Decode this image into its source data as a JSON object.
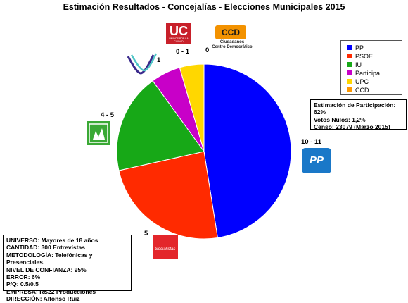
{
  "chart_data": {
    "type": "pie",
    "title": "Estimación Resultados - Concejalías - Elecciones Municipales 2015",
    "start_angle_deg": 90,
    "direction": "clockwise",
    "slices": [
      {
        "label": "PP",
        "value": 47.5,
        "color": "#0000ff",
        "seats": "10 - 11"
      },
      {
        "label": "PSOE",
        "value": 24.0,
        "color": "#ff2a00",
        "seats": "5"
      },
      {
        "label": "IU",
        "value": 18.5,
        "color": "#17a817",
        "seats": "4 - 5"
      },
      {
        "label": "Participa",
        "value": 5.5,
        "color": "#c800c8",
        "seats": "1"
      },
      {
        "label": "UPC",
        "value": 4.5,
        "color": "#ffd700",
        "seats": "0 - 1"
      },
      {
        "label": "CCD",
        "value": 0.0,
        "color": "#ff9900",
        "seats": "0"
      }
    ],
    "legend": [
      "PP",
      "PSOE",
      "IU",
      "Participa",
      "UPC",
      "CCD"
    ],
    "legend_position": "top-right"
  },
  "turnout_info": [
    "Estimación de Participación: 62%",
    "Votos Nulos: 1,2%",
    "Censo: 23079 (Marzo 2015)"
  ],
  "methodology": [
    "UNIVERSO: Mayores de 18 años",
    "CANTIDAD: 300 Entrevistas",
    "METODOLOGÍA: Telefónicas y Presenciales.",
    "NIVEL DE CONFIANZA: 95%",
    "ERROR: 6%",
    "P/Q: 0.5/0.5",
    "EMPRESA: RS22 Producciones",
    "DIRECCIÓN: Alfonso Ruiz"
  ],
  "logos": {
    "uc": {
      "text": "UC",
      "subtext": "UNIDOS POR LA CIUDAD"
    },
    "ccd": {
      "text": "CCD",
      "subtext_1": "Ciudadanos",
      "subtext_2": "Centro Democrático"
    },
    "pp": {
      "text": "PP"
    },
    "psoe": {
      "text": "Socialistas"
    }
  }
}
